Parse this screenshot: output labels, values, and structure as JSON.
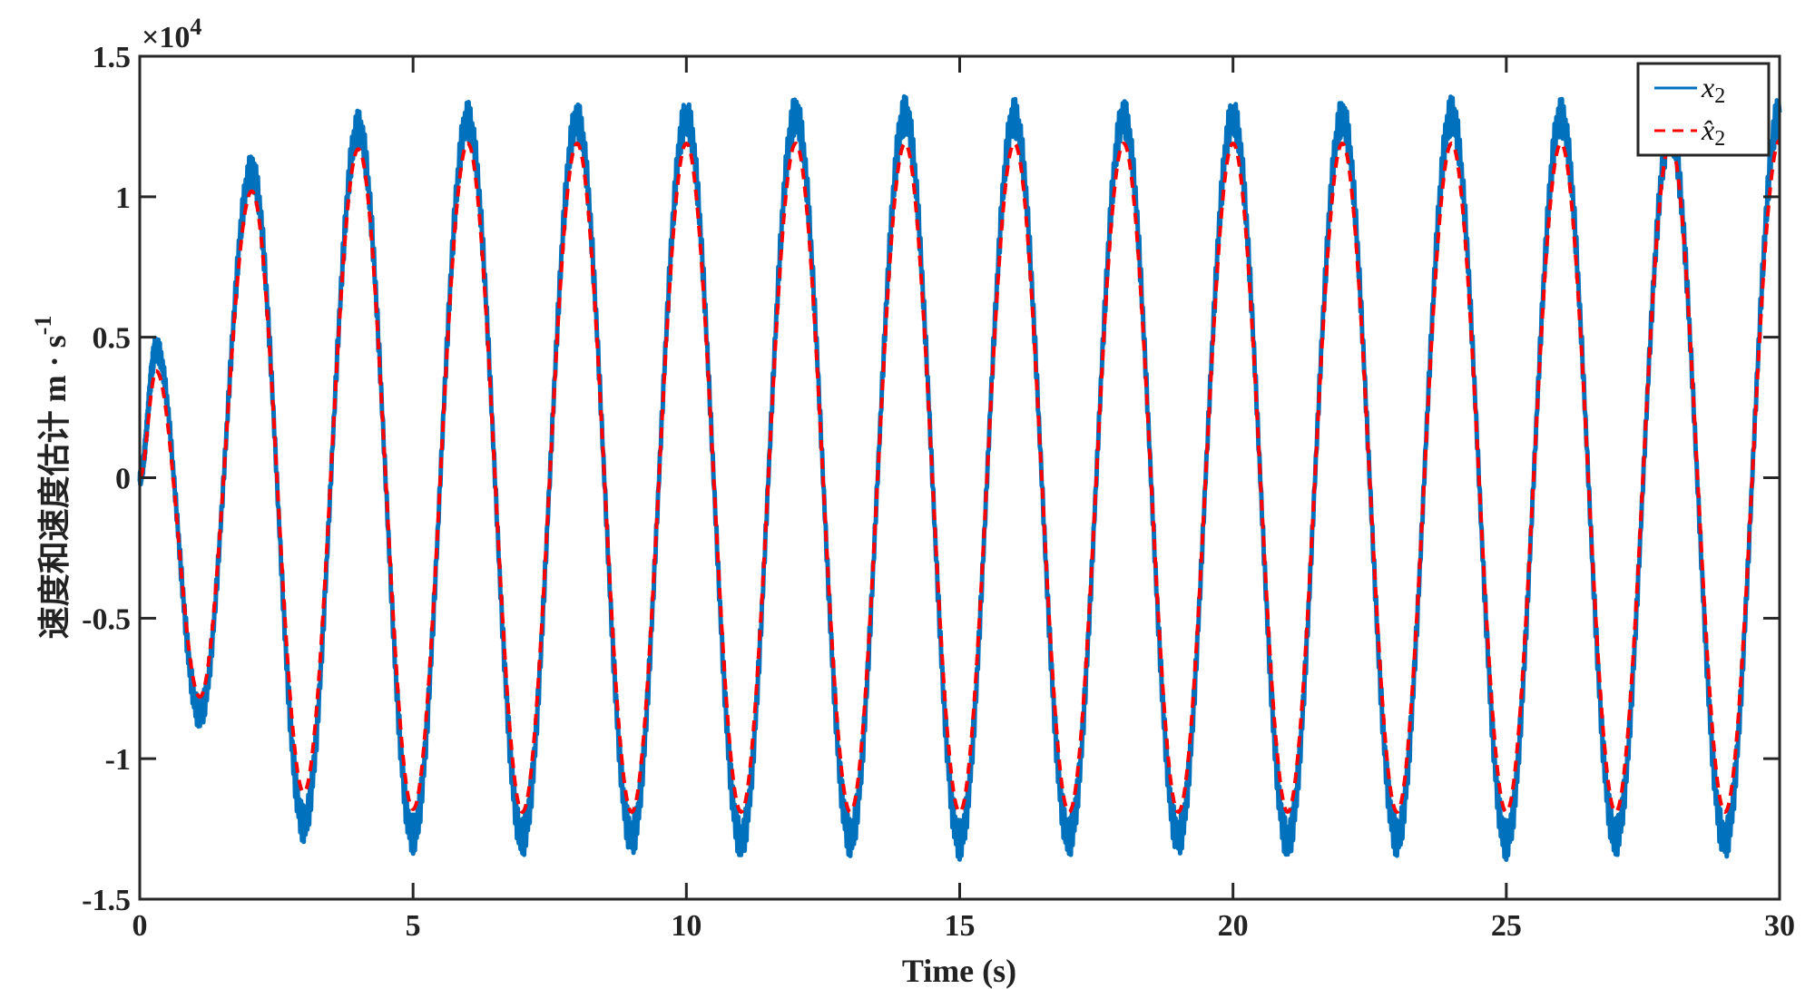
{
  "chart_data": {
    "type": "line",
    "xlabel": "Time (s)",
    "ylabel": "速度和速度估计 m · s",
    "ylabel_sup": "-1",
    "y_exponent_label": "×10",
    "y_exponent_power": "4",
    "xlim": [
      0,
      30
    ],
    "ylim": [
      -15000,
      15000
    ],
    "x_ticks": [
      "0",
      "5",
      "10",
      "15",
      "20",
      "25",
      "30"
    ],
    "x_tick_values": [
      0,
      5,
      10,
      15,
      20,
      25,
      30
    ],
    "y_ticks": [
      "1.5",
      "1",
      "0.5",
      "0",
      "-0.5",
      "-1",
      "-1.5"
    ],
    "y_tick_values": [
      15000,
      10000,
      5000,
      0,
      -5000,
      -10000,
      -15000
    ],
    "grid": false,
    "legend_position": "top-right",
    "series": [
      {
        "name": "x2",
        "legend_base": "x",
        "legend_sub": "2",
        "color": "#0072BD",
        "style": "solid",
        "noise_amplitude": 700,
        "extrema": [
          [
            0,
            0
          ],
          [
            0.3,
            4600
          ],
          [
            1.1,
            -8400
          ],
          [
            2.05,
            10900
          ],
          [
            3,
            -12300
          ],
          [
            4,
            12400
          ],
          [
            5,
            -12700
          ],
          [
            6,
            12700
          ],
          [
            7,
            -12800
          ],
          [
            8,
            12700
          ],
          [
            9,
            -12800
          ],
          [
            10,
            12800
          ],
          [
            11,
            -12900
          ],
          [
            12,
            12900
          ],
          [
            13,
            -12800
          ],
          [
            14,
            12900
          ],
          [
            15,
            -12900
          ],
          [
            16,
            12800
          ],
          [
            17,
            -12800
          ],
          [
            18,
            12800
          ],
          [
            19,
            -12800
          ],
          [
            20,
            12800
          ],
          [
            21,
            -12900
          ],
          [
            22,
            12800
          ],
          [
            23,
            -12800
          ],
          [
            24,
            12900
          ],
          [
            25,
            -12900
          ],
          [
            26,
            12800
          ],
          [
            27,
            -12800
          ],
          [
            28,
            12300
          ],
          [
            29,
            -12900
          ],
          [
            30,
            13000
          ]
        ]
      },
      {
        "name": "x̂2",
        "legend_base": "x̂",
        "legend_sub": "2",
        "color": "#FF0000",
        "style": "dashed",
        "noise_amplitude": 0,
        "extrema": [
          [
            0,
            0
          ],
          [
            0.3,
            3800
          ],
          [
            1.1,
            -7800
          ],
          [
            2.05,
            10200
          ],
          [
            3,
            -11200
          ],
          [
            4,
            11700
          ],
          [
            5,
            -11800
          ],
          [
            6,
            11900
          ],
          [
            7,
            -11900
          ],
          [
            8,
            11900
          ],
          [
            9,
            -11900
          ],
          [
            10,
            11900
          ],
          [
            11,
            -11900
          ],
          [
            12,
            11900
          ],
          [
            13,
            -11900
          ],
          [
            14,
            11900
          ],
          [
            15,
            -11900
          ],
          [
            16,
            11900
          ],
          [
            17,
            -11900
          ],
          [
            18,
            11900
          ],
          [
            19,
            -11900
          ],
          [
            20,
            11900
          ],
          [
            21,
            -11900
          ],
          [
            22,
            11900
          ],
          [
            23,
            -11900
          ],
          [
            24,
            11900
          ],
          [
            25,
            -11900
          ],
          [
            26,
            11900
          ],
          [
            27,
            -11900
          ],
          [
            28,
            11900
          ],
          [
            29,
            -11900
          ],
          [
            30,
            12000
          ]
        ]
      }
    ]
  }
}
